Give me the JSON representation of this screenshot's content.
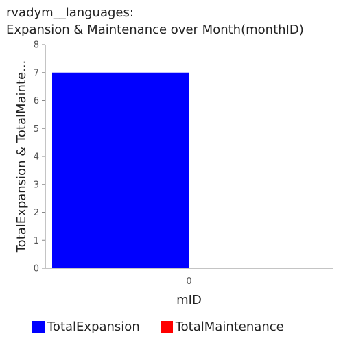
{
  "chart_data": {
    "type": "bar",
    "title_line1": "rvadym__languages:",
    "title_line2": "Expansion & Maintenance over Month(monthID)",
    "xlabel": "mID",
    "ylabel": "TotalExpansion & TotalMainte...",
    "categories": [
      "0"
    ],
    "ylim": [
      0,
      8
    ],
    "yticks": [
      0,
      1,
      2,
      3,
      4,
      5,
      6,
      7,
      8
    ],
    "grid": false,
    "legend_position": "bottom",
    "series": [
      {
        "name": "TotalExpansion",
        "color": "#0000ff",
        "values": [
          7
        ]
      },
      {
        "name": "TotalMaintenance",
        "color": "#ff0000",
        "values": [
          0
        ]
      }
    ]
  }
}
